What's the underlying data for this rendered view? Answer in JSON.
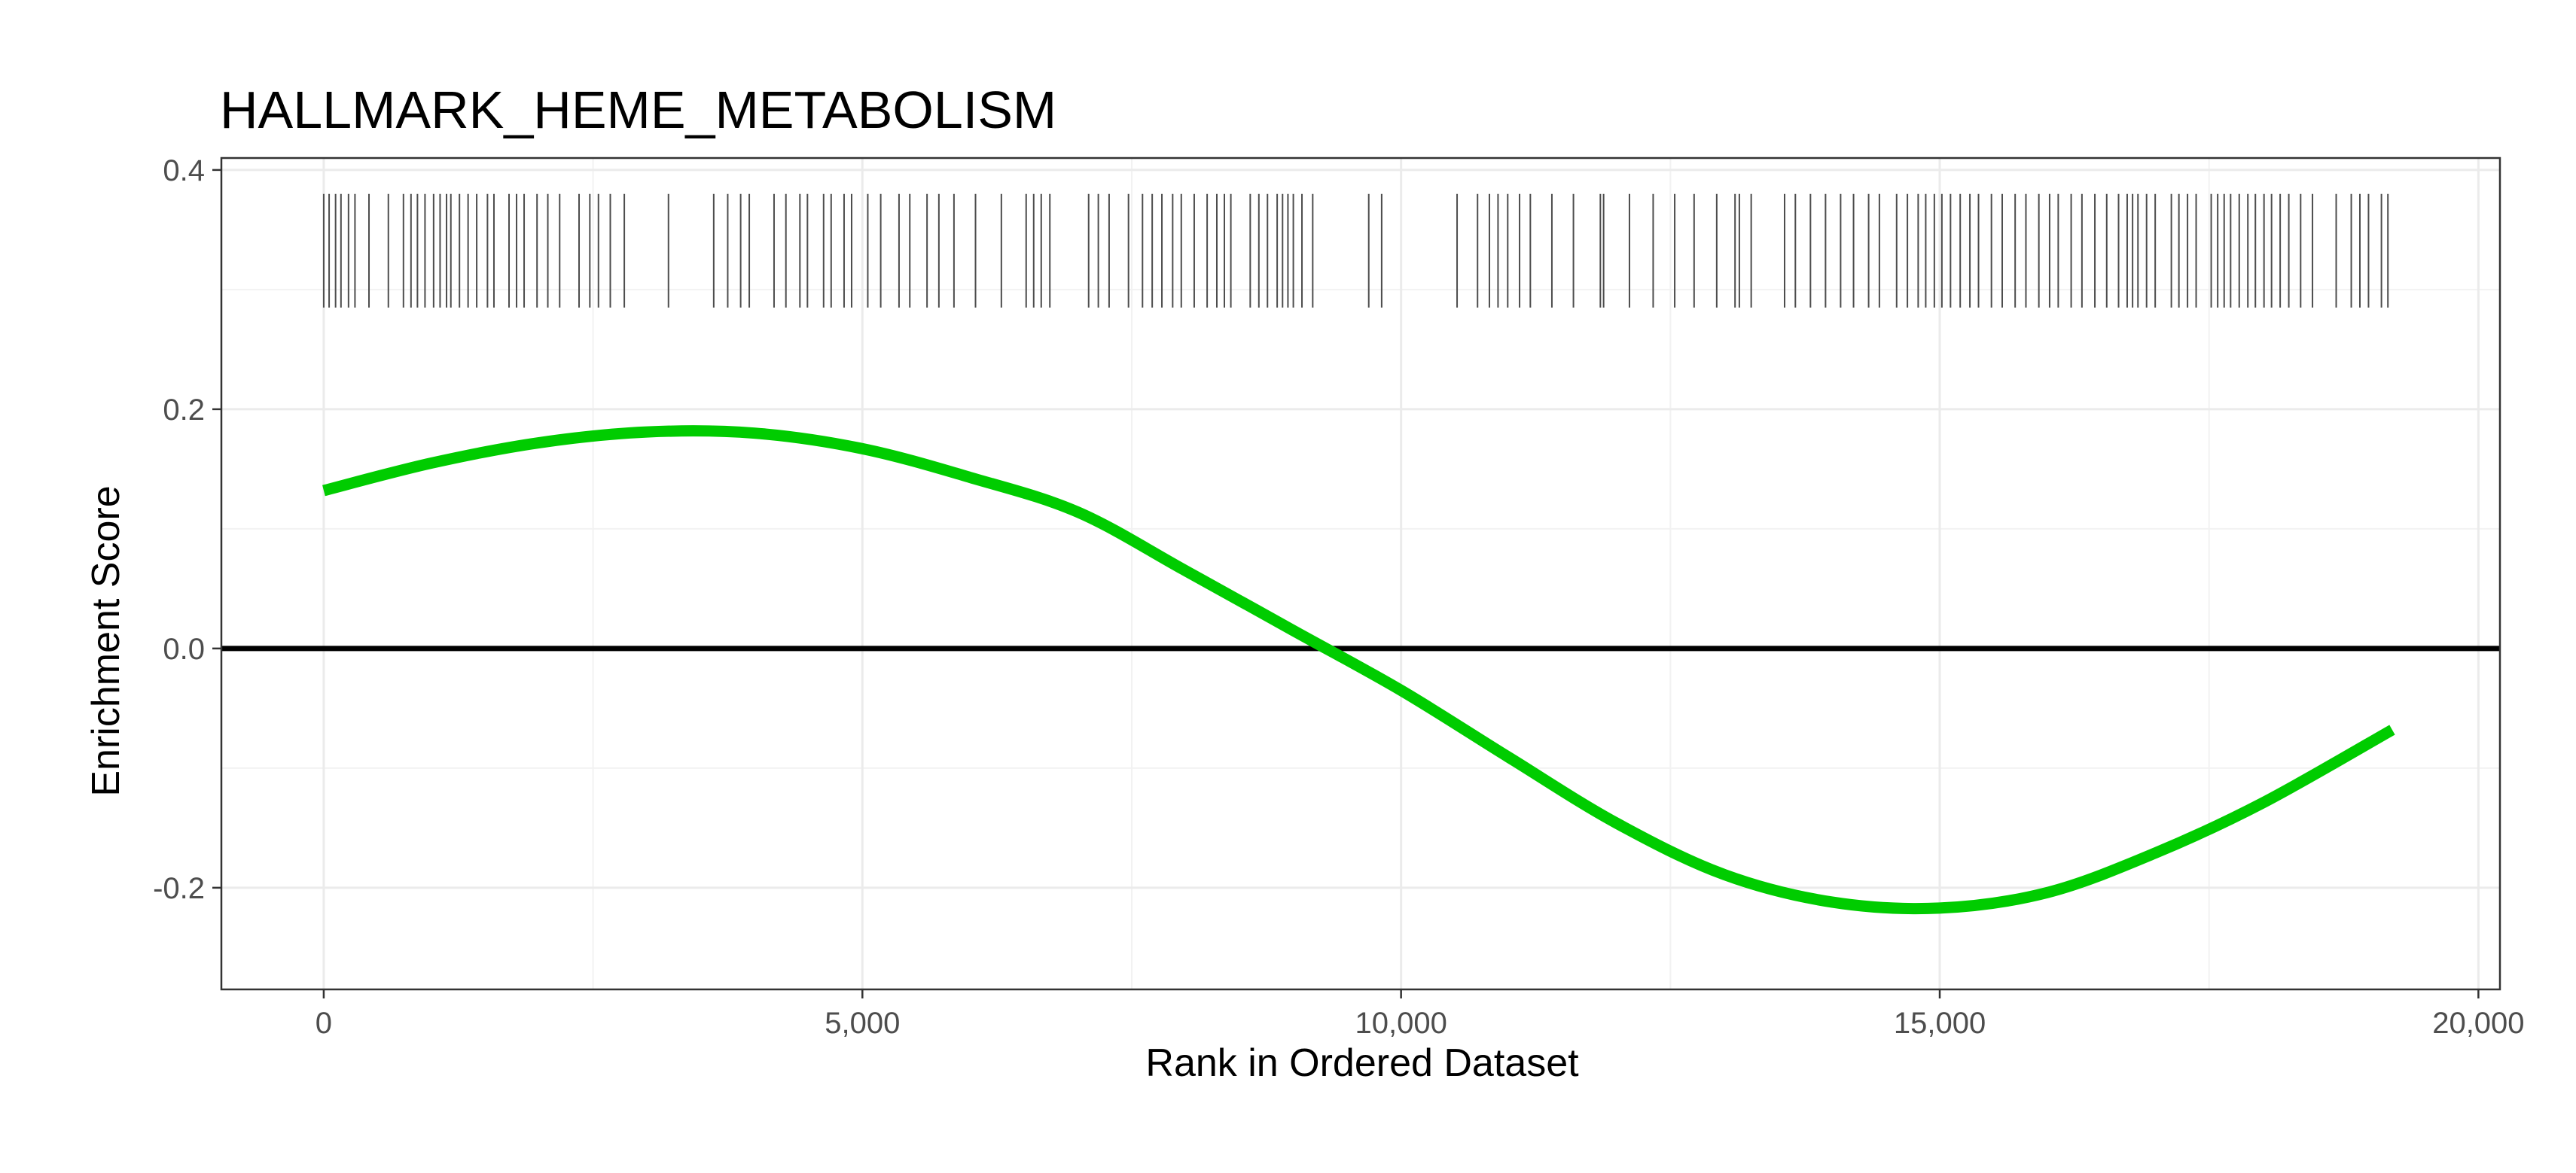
{
  "chart_data": {
    "type": "line",
    "title": "HALLMARK_HEME_METABOLISM",
    "xlabel": "Rank in Ordered Dataset",
    "ylabel": "Enrichment Score",
    "xlim": [
      -950,
      20200
    ],
    "ylim": [
      -0.285,
      0.41
    ],
    "grid": true,
    "x_ticks": [
      0,
      5000,
      10000,
      15000,
      20000
    ],
    "x_tick_labels": [
      "0",
      "5,000",
      "10,000",
      "15,000",
      "20,000"
    ],
    "y_ticks": [
      -0.2,
      0.0,
      0.2,
      0.4
    ],
    "y_tick_labels": [
      "-0.2",
      "0.0",
      "0.2",
      "0.4"
    ],
    "reference_line": {
      "y": 0.0,
      "color": "#000000"
    },
    "series": [
      {
        "color": "#00cc00",
        "x": [
          0,
          1000,
          2000,
          3000,
          4000,
          5000,
          6000,
          7000,
          8000,
          9000,
          10000,
          11000,
          12000,
          13000,
          14000,
          15000,
          16000,
          17000,
          18000,
          19200
        ],
        "values": [
          0.132,
          0.155,
          0.172,
          0.181,
          0.18,
          0.167,
          0.143,
          0.114,
          0.065,
          0.015,
          -0.035,
          -0.091,
          -0.146,
          -0.189,
          -0.212,
          -0.217,
          -0.204,
          -0.171,
          -0.129,
          -0.068
        ]
      }
    ],
    "rug": {
      "color": "#4d4d4d",
      "y_range": [
        0.285,
        0.38
      ],
      "positions": [
        0,
        50,
        110,
        160,
        230,
        290,
        420,
        600,
        740,
        810,
        870,
        940,
        1020,
        1080,
        1140,
        1180,
        1260,
        1340,
        1420,
        1520,
        1580,
        1720,
        1790,
        1860,
        1980,
        2080,
        2190,
        2370,
        2470,
        2550,
        2660,
        2790,
        3200,
        3620,
        3750,
        3870,
        3950,
        4180,
        4290,
        4420,
        4490,
        4640,
        4710,
        4830,
        4900,
        5050,
        5170,
        5340,
        5440,
        5600,
        5710,
        5850,
        6050,
        6290,
        6520,
        6590,
        6660,
        6740,
        7100,
        7190,
        7290,
        7470,
        7600,
        7690,
        7780,
        7880,
        7960,
        8080,
        8200,
        8290,
        8360,
        8420,
        8600,
        8680,
        8760,
        8850,
        8900,
        8950,
        9000,
        9080,
        9180,
        9700,
        9820,
        10520,
        10710,
        10820,
        10900,
        10990,
        11100,
        11200,
        11400,
        11600,
        11850,
        11880,
        12120,
        12340,
        12540,
        12720,
        12930,
        13100,
        13140,
        13250,
        13560,
        13660,
        13800,
        13940,
        14080,
        14200,
        14340,
        14440,
        14600,
        14700,
        14800,
        14870,
        14950,
        15020,
        15100,
        15190,
        15280,
        15360,
        15480,
        15580,
        15700,
        15800,
        15920,
        16020,
        16100,
        16220,
        16320,
        16440,
        16550,
        16660,
        16740,
        16790,
        16840,
        16920,
        17000,
        17150,
        17220,
        17300,
        17380,
        17520,
        17580,
        17640,
        17700,
        17780,
        17860,
        17930,
        18010,
        18080,
        18160,
        18240,
        18350,
        18460,
        18680,
        18820,
        18900,
        18980,
        19100,
        19160
      ]
    }
  }
}
